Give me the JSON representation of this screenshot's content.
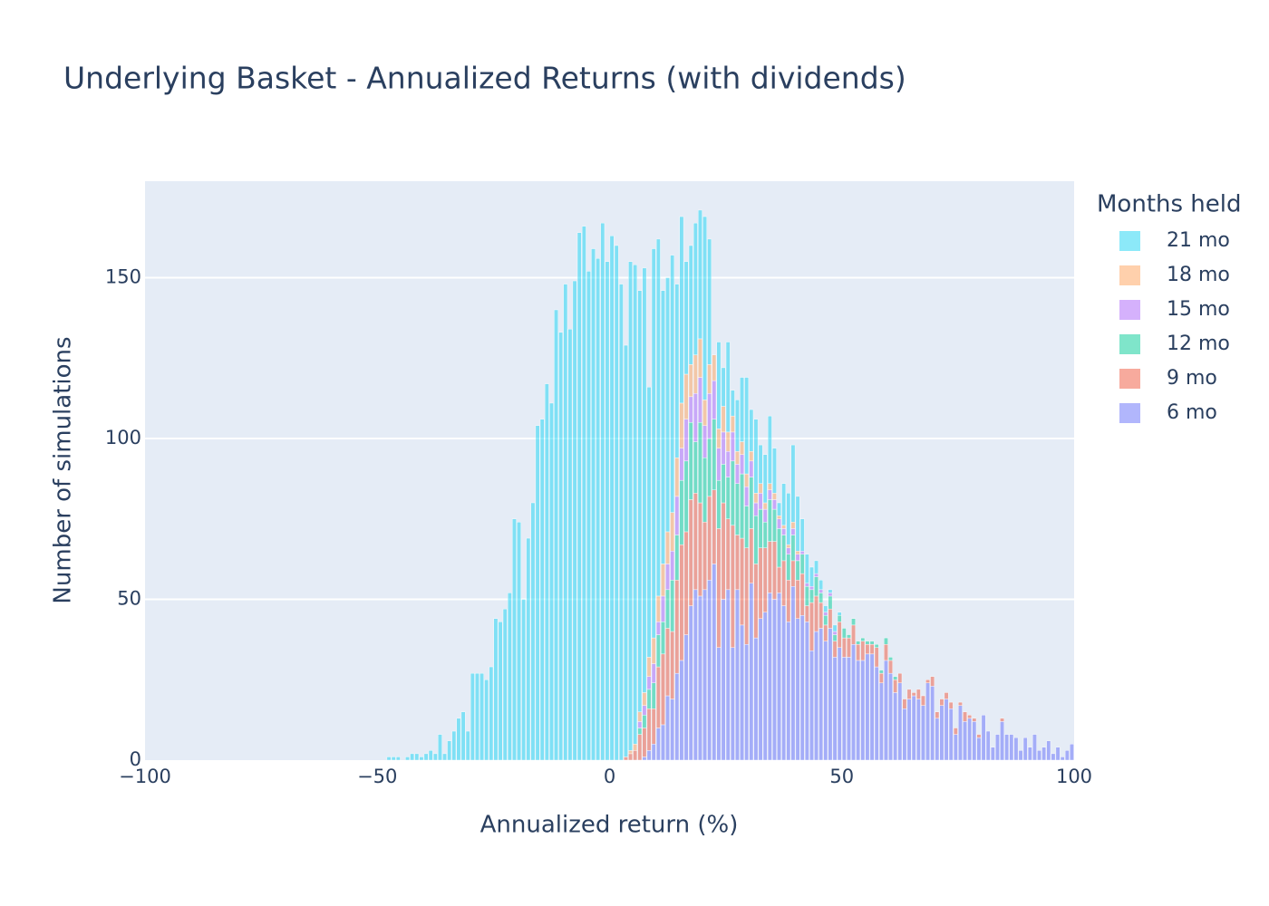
{
  "chart_data": {
    "type": "histogram",
    "title": "Underlying Basket - Annualized Returns (with dividends)",
    "x_label": "Annualized return (%)",
    "y_label": "Number of simulations",
    "legend_title": "Months held",
    "barmode": "stack",
    "opacity": 0.5,
    "grid": true,
    "xlim": [
      -100,
      100
    ],
    "xticks": [
      {
        "value": -100,
        "label": "−100"
      },
      {
        "value": -50,
        "label": "−50"
      },
      0,
      50,
      100
    ],
    "ylim": [
      0,
      180
    ],
    "yticks": [
      0,
      50,
      100,
      150
    ],
    "bins": [
      -50,
      -49,
      -48,
      -47,
      -46,
      -45,
      -44,
      -43,
      -42,
      -41,
      -40,
      -39,
      -38,
      -37,
      -36,
      -35,
      -34,
      -33,
      -32,
      -31,
      -30,
      -29,
      -28,
      -27,
      -26,
      -25,
      -24,
      -23,
      -22,
      -21,
      -20,
      -19,
      -18,
      -17,
      -16,
      -15,
      -14,
      -13,
      -12,
      -11,
      -10,
      -9,
      -8,
      -7,
      -6,
      -5,
      -4,
      -3,
      -2,
      -1,
      0,
      1,
      2,
      3,
      4,
      5,
      6,
      7,
      8,
      9,
      10,
      11,
      12,
      13,
      14,
      15,
      16,
      17,
      18,
      19,
      20,
      21,
      22,
      23,
      24,
      25,
      26,
      27,
      28,
      29,
      30,
      31,
      32,
      33,
      34,
      35,
      36,
      37,
      38,
      39,
      40,
      41,
      42,
      43,
      44,
      45,
      46,
      47,
      48,
      49,
      50,
      51,
      52,
      53,
      54,
      55,
      56,
      57,
      58,
      59,
      60,
      61,
      62,
      63,
      64,
      65,
      66,
      67,
      68,
      69,
      70,
      71,
      72,
      73,
      74,
      75,
      76,
      77,
      78,
      79,
      80,
      81,
      82,
      83,
      84,
      85,
      86,
      87,
      88,
      89,
      90,
      91,
      92,
      93,
      94,
      95,
      96,
      97,
      98,
      99,
      100
    ],
    "series": [
      {
        "name": "6 mo",
        "color": "#636efa",
        "values": [
          0,
          0,
          0,
          0,
          0,
          0,
          0,
          0,
          0,
          0,
          0,
          0,
          0,
          0,
          0,
          0,
          0,
          0,
          0,
          0,
          0,
          0,
          0,
          0,
          0,
          0,
          0,
          0,
          0,
          0,
          0,
          0,
          0,
          0,
          0,
          0,
          0,
          0,
          0,
          0,
          0,
          0,
          0,
          0,
          0,
          0,
          0,
          0,
          0,
          0,
          0,
          0,
          0,
          0,
          0,
          0,
          0,
          1,
          3,
          5,
          10,
          11,
          20,
          19,
          27,
          31,
          39,
          48,
          53,
          51,
          53,
          56,
          61,
          35,
          50,
          53,
          35,
          53,
          42,
          36,
          55,
          38,
          44,
          46,
          52,
          50,
          52,
          48,
          43,
          54,
          44,
          45,
          43,
          34,
          40,
          41,
          37,
          41,
          32,
          35,
          32,
          32,
          36,
          31,
          31,
          33,
          33,
          29,
          24,
          31,
          27,
          21,
          24,
          16,
          19,
          20,
          19,
          17,
          24,
          23,
          13,
          17,
          19,
          16,
          8,
          17,
          12,
          13,
          12,
          7,
          14,
          9,
          4,
          8,
          12,
          8,
          8,
          7,
          3,
          7,
          4,
          8,
          3,
          4,
          6,
          2,
          4,
          1,
          3,
          5
        ]
      },
      {
        "name": "9 mo",
        "color": "#ef553b",
        "values": [
          0,
          0,
          0,
          0,
          0,
          0,
          0,
          0,
          0,
          0,
          0,
          0,
          0,
          0,
          0,
          0,
          0,
          0,
          0,
          0,
          0,
          0,
          0,
          0,
          0,
          0,
          0,
          0,
          0,
          0,
          0,
          0,
          0,
          0,
          0,
          0,
          0,
          0,
          0,
          0,
          0,
          0,
          0,
          0,
          0,
          0,
          0,
          0,
          0,
          0,
          0,
          0,
          0,
          1,
          2,
          3,
          8,
          9,
          13,
          11,
          19,
          22,
          21,
          21,
          29,
          36,
          32,
          33,
          30,
          29,
          21,
          26,
          23,
          37,
          30,
          22,
          38,
          17,
          27,
          30,
          17,
          23,
          22,
          20,
          16,
          18,
          8,
          14,
          13,
          8,
          12,
          13,
          5,
          15,
          11,
          8,
          5,
          6,
          5,
          8,
          6,
          6,
          6,
          5,
          6,
          3,
          3,
          6,
          3,
          5,
          4,
          4,
          3,
          3,
          3,
          1,
          3,
          3,
          1,
          3,
          2,
          2,
          2,
          2,
          2,
          1,
          3,
          1,
          1,
          1,
          0,
          0,
          0,
          0,
          1,
          0,
          0,
          0,
          0,
          0,
          0,
          0,
          0,
          0,
          0,
          0,
          0,
          0,
          0,
          0
        ]
      },
      {
        "name": "12 mo",
        "color": "#00cc96",
        "values": [
          0,
          0,
          0,
          0,
          0,
          0,
          0,
          0,
          0,
          0,
          0,
          0,
          0,
          0,
          0,
          0,
          0,
          0,
          0,
          0,
          0,
          0,
          0,
          0,
          0,
          0,
          0,
          0,
          0,
          0,
          0,
          0,
          0,
          0,
          0,
          0,
          0,
          0,
          0,
          0,
          0,
          0,
          0,
          0,
          0,
          0,
          0,
          0,
          0,
          0,
          0,
          0,
          0,
          0,
          0,
          0,
          2,
          4,
          6,
          8,
          10,
          10,
          12,
          16,
          14,
          20,
          22,
          24,
          16,
          25,
          20,
          18,
          22,
          15,
          12,
          13,
          20,
          16,
          20,
          13,
          16,
          15,
          12,
          8,
          13,
          10,
          12,
          8,
          8,
          8,
          6,
          6,
          6,
          4,
          6,
          3,
          3,
          4,
          2,
          2,
          3,
          1,
          2,
          1,
          1,
          1,
          1,
          1,
          1,
          2,
          1,
          1,
          0,
          0,
          0,
          0,
          0,
          0,
          0,
          0,
          0,
          0,
          0,
          0,
          0,
          0,
          0,
          0,
          0,
          0,
          0,
          0,
          0,
          0,
          0,
          0,
          0,
          0,
          0,
          0,
          0,
          0,
          0,
          0,
          0,
          0,
          0,
          0,
          0,
          0
        ]
      },
      {
        "name": "15 mo",
        "color": "#ab63fa",
        "values": [
          0,
          0,
          0,
          0,
          0,
          0,
          0,
          0,
          0,
          0,
          0,
          0,
          0,
          0,
          0,
          0,
          0,
          0,
          0,
          0,
          0,
          0,
          0,
          0,
          0,
          0,
          0,
          0,
          0,
          0,
          0,
          0,
          0,
          0,
          0,
          0,
          0,
          0,
          0,
          0,
          0,
          0,
          0,
          0,
          0,
          0,
          0,
          0,
          0,
          0,
          0,
          0,
          0,
          0,
          0,
          0,
          2,
          3,
          4,
          6,
          4,
          8,
          8,
          9,
          12,
          10,
          13,
          8,
          15,
          14,
          10,
          14,
          12,
          10,
          10,
          8,
          9,
          6,
          6,
          6,
          5,
          4,
          5,
          4,
          3,
          3,
          3,
          2,
          2,
          2,
          2,
          1,
          1,
          1,
          1,
          1,
          1,
          1,
          1,
          0,
          0,
          0,
          0,
          0,
          0,
          0,
          0,
          0,
          0,
          0,
          0,
          0,
          0,
          0,
          0,
          0,
          0,
          0,
          0,
          0,
          0,
          0,
          0,
          0,
          0,
          0,
          0,
          0,
          0,
          0,
          0,
          0,
          0,
          0,
          0,
          0,
          0,
          0,
          0,
          0,
          0,
          0,
          0,
          0,
          0,
          0,
          0,
          0,
          0,
          0
        ]
      },
      {
        "name": "18 mo",
        "color": "#ffa15a",
        "values": [
          0,
          0,
          0,
          0,
          0,
          0,
          0,
          0,
          0,
          0,
          0,
          0,
          0,
          0,
          0,
          0,
          0,
          0,
          0,
          0,
          0,
          0,
          0,
          0,
          0,
          0,
          0,
          0,
          0,
          0,
          0,
          0,
          0,
          0,
          0,
          0,
          0,
          0,
          0,
          0,
          0,
          0,
          0,
          0,
          0,
          0,
          0,
          0,
          0,
          0,
          0,
          0,
          0,
          0,
          1,
          2,
          3,
          4,
          6,
          8,
          8,
          10,
          10,
          12,
          12,
          14,
          14,
          10,
          12,
          12,
          8,
          9,
          8,
          6,
          8,
          6,
          5,
          4,
          4,
          4,
          3,
          3,
          3,
          2,
          2,
          2,
          1,
          1,
          1,
          2,
          1,
          0,
          0,
          0,
          0,
          0,
          0,
          0,
          0,
          0,
          0,
          0,
          0,
          0,
          0,
          0,
          0,
          0,
          0,
          0,
          0,
          0,
          0,
          0,
          0,
          0,
          0,
          0,
          0,
          0,
          0,
          0,
          0,
          0,
          0,
          0,
          0,
          0,
          0,
          0,
          0,
          0,
          0,
          0,
          0,
          0,
          0,
          0,
          0,
          0,
          0,
          0,
          0,
          0,
          0,
          0,
          0,
          0,
          0,
          0
        ]
      },
      {
        "name": "21 mo",
        "color": "#19d3f3",
        "values": [
          0,
          0,
          1,
          1,
          1,
          0,
          1,
          2,
          2,
          1,
          2,
          3,
          2,
          8,
          2,
          6,
          9,
          13,
          15,
          9,
          27,
          27,
          27,
          25,
          29,
          44,
          43,
          47,
          52,
          75,
          74,
          50,
          69,
          80,
          104,
          106,
          117,
          111,
          140,
          133,
          148,
          134,
          149,
          164,
          166,
          152,
          159,
          156,
          167,
          155,
          163,
          160,
          148,
          128,
          152,
          149,
          131,
          132,
          84,
          121,
          111,
          85,
          79,
          80,
          54,
          58,
          35,
          37,
          41,
          40,
          57,
          39,
          0,
          27,
          12,
          28,
          8,
          16,
          20,
          30,
          13,
          23,
          12,
          15,
          21,
          14,
          4,
          13,
          16,
          24,
          17,
          10,
          9,
          6,
          4,
          3,
          2,
          1,
          2,
          1,
          0,
          0,
          0,
          0,
          0,
          0,
          0,
          0,
          0,
          0,
          0,
          0,
          0,
          0,
          0,
          0,
          0,
          0,
          0,
          0,
          0,
          0,
          0,
          0,
          0,
          0,
          0,
          0,
          0,
          0,
          0,
          0,
          0,
          0,
          0,
          0,
          0,
          0,
          0,
          0,
          0,
          0,
          0,
          0,
          0,
          0,
          0,
          0,
          0,
          0
        ]
      }
    ]
  }
}
